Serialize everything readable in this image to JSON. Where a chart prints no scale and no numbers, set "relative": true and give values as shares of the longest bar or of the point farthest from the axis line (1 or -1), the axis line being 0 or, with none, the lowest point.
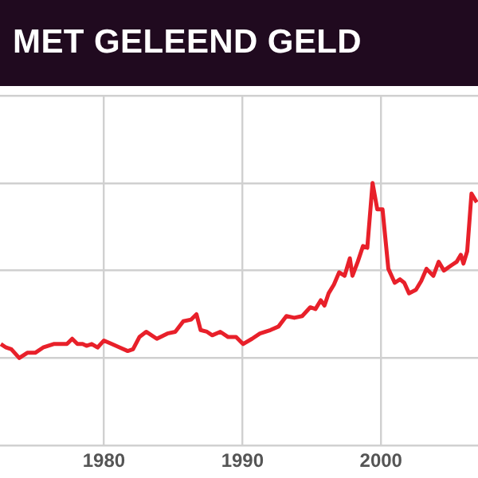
{
  "chart_data": {
    "type": "line",
    "title": "MET GELEEND GELD",
    "relative": true,
    "grid": true,
    "xlim": [
      1972.5,
      2007
    ],
    "xticks": [
      1980,
      1990,
      2000
    ],
    "x": [
      1972.56,
      1972.94,
      1973.32,
      1973.89,
      1974.47,
      1975.04,
      1975.61,
      1976.37,
      1976.95,
      1977.33,
      1977.71,
      1978.09,
      1978.47,
      1978.74,
      1979.12,
      1979.54,
      1980,
      1980.57,
      1981.15,
      1981.72,
      1982.1,
      1982.56,
      1983.05,
      1983.82,
      1984.58,
      1985.15,
      1985.73,
      1986.3,
      1986.68,
      1986.98,
      1987.44,
      1987.82,
      1988.4,
      1988.97,
      1989.54,
      1990.04,
      1990.69,
      1991.26,
      1992.02,
      1992.6,
      1993.17,
      1993.74,
      1994.31,
      1994.89,
      1995.27,
      1995.65,
      1995.92,
      1996.22,
      1996.6,
      1996.98,
      1997.37,
      1997.75,
      1997.94,
      1998.32,
      1998.7,
      1999.01,
      1999.39,
      1999.73,
      2000.11,
      2000.53,
      2000.99,
      2001.37,
      2001.68,
      2002.02,
      2002.52,
      2002.9,
      2003.28,
      2003.78,
      2004.16,
      2004.54,
      2005.08,
      2005.46,
      2005.76,
      2005.95,
      2006.22,
      2006.53,
      2006.91
    ],
    "series": [
      {
        "color": "#e8202a",
        "values": [
          0.08,
          0.06,
          0.05,
          0,
          0.03,
          0.03,
          0.06,
          0.08,
          0.08,
          0.08,
          0.11,
          0.08,
          0.08,
          0.07,
          0.08,
          0.06,
          0.1,
          0.08,
          0.06,
          0.04,
          0.05,
          0.12,
          0.15,
          0.11,
          0.14,
          0.15,
          0.21,
          0.22,
          0.25,
          0.16,
          0.15,
          0.13,
          0.15,
          0.12,
          0.12,
          0.08,
          0.11,
          0.14,
          0.16,
          0.18,
          0.24,
          0.23,
          0.24,
          0.29,
          0.28,
          0.33,
          0.3,
          0.37,
          0.42,
          0.49,
          0.47,
          0.57,
          0.47,
          0.55,
          0.64,
          0.63,
          1,
          0.85,
          0.85,
          0.51,
          0.43,
          0.45,
          0.43,
          0.37,
          0.39,
          0.44,
          0.51,
          0.47,
          0.55,
          0.5,
          0.53,
          0.55,
          0.59,
          0.54,
          0.61,
          0.94,
          0.89
        ]
      }
    ],
    "marker": "none",
    "line_style": "solid",
    "legend": false
  }
}
